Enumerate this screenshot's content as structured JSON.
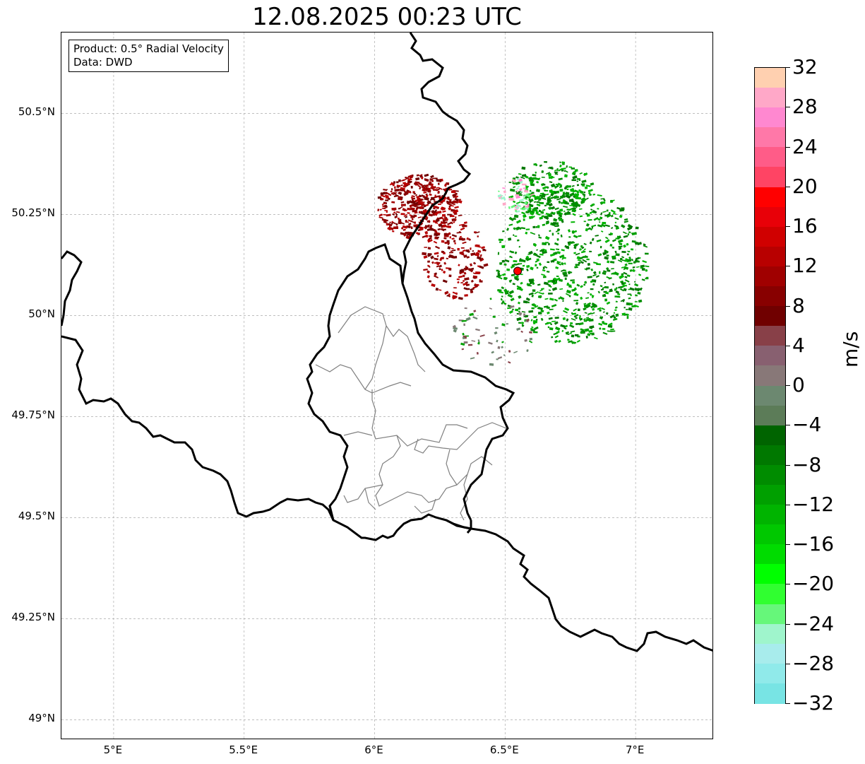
{
  "title": "12.08.2025 00:23 UTC",
  "info_box": {
    "product": "Product: 0.5° Radial Velocity",
    "data_source": "Data: DWD"
  },
  "latitude_labels": [
    "50.5°N",
    "50.25°N",
    "50°N",
    "49.75°N",
    "49.5°N",
    "49.25°N",
    "49°N"
  ],
  "longitude_labels": [
    "5°E",
    "5.5°E",
    "6°E",
    "6.5°E",
    "7°E"
  ],
  "colorbar": {
    "unit": "m/s",
    "tick_labels": [
      "32",
      "28",
      "24",
      "20",
      "16",
      "12",
      "8",
      "4",
      "0",
      "−4",
      "−8",
      "−12",
      "−16",
      "−20",
      "−24",
      "−28",
      "−32"
    ],
    "range": [
      -32,
      32
    ],
    "colors_top_to_bottom": [
      "#ffd0b0",
      "#ffa8c8",
      "#ff88d0",
      "#ff78a8",
      "#ff5c88",
      "#ff4464",
      "#ff0000",
      "#e80008",
      "#d00000",
      "#b80000",
      "#a00000",
      "#880000",
      "#700000",
      "#884048",
      "#886070",
      "#887878",
      "#6c8870",
      "#5c7c58",
      "#006400",
      "#007800",
      "#008c00",
      "#00a000",
      "#00b400",
      "#00c800",
      "#00dc00",
      "#00ff00",
      "#30ff30",
      "#66f77a",
      "#9ff5cc",
      "#a8ecec",
      "#90eaea",
      "#78e4e4"
    ]
  },
  "radar_site": {
    "lon": 6.548,
    "lat": 50.11,
    "color": "#ff0000"
  },
  "map_extent": {
    "lon": [
      4.8,
      7.3
    ],
    "lat": [
      48.95,
      50.7
    ]
  }
}
